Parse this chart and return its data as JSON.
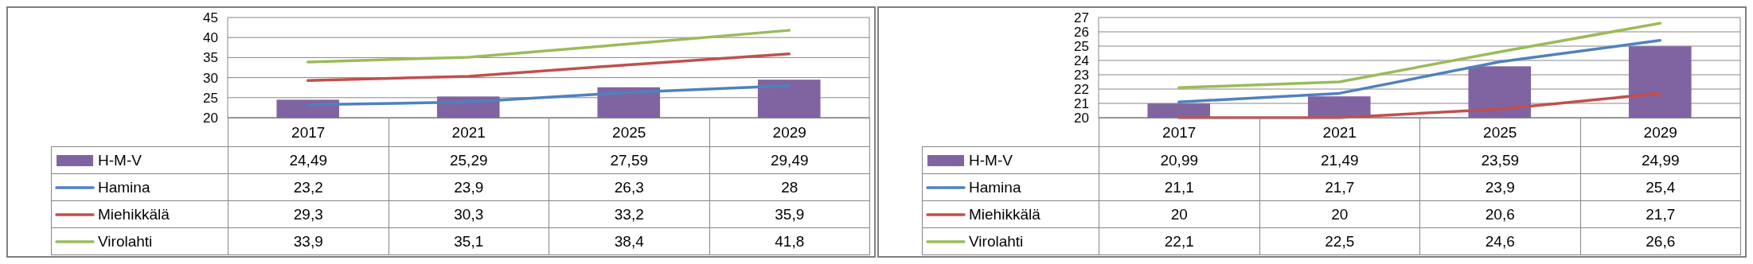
{
  "chart_data": [
    {
      "type": "bar",
      "categories": [
        "2017",
        "2021",
        "2025",
        "2029"
      ],
      "ylim": [
        20,
        45
      ],
      "yticks": [
        20,
        25,
        30,
        35,
        40,
        45
      ],
      "grid": "y",
      "legend": "bottom",
      "series": [
        {
          "name": "H-M-V",
          "type": "bar",
          "color": "#8064a2",
          "values": [
            24.49,
            25.29,
            27.59,
            29.49
          ],
          "value_labels": [
            "24,49",
            "25,29",
            "27,59",
            "29,49"
          ]
        },
        {
          "name": "Hamina",
          "type": "line",
          "color": "#4f81bd",
          "values": [
            23.2,
            23.9,
            26.3,
            28
          ],
          "value_labels": [
            "23,2",
            "23,9",
            "26,3",
            "28"
          ]
        },
        {
          "name": "Miehikkälä",
          "type": "line",
          "color": "#c0504d",
          "values": [
            29.3,
            30.3,
            33.2,
            35.9
          ],
          "value_labels": [
            "29,3",
            "30,3",
            "33,2",
            "35,9"
          ]
        },
        {
          "name": "Virolahti",
          "type": "line",
          "color": "#9bbb59",
          "values": [
            33.9,
            35.1,
            38.4,
            41.8
          ],
          "value_labels": [
            "33,9",
            "35,1",
            "38,4",
            "41,8"
          ]
        }
      ]
    },
    {
      "type": "bar",
      "categories": [
        "2017",
        "2021",
        "2025",
        "2029"
      ],
      "ylim": [
        20,
        27
      ],
      "yticks": [
        20,
        21,
        22,
        23,
        24,
        25,
        26,
        27
      ],
      "grid": "y",
      "legend": "bottom",
      "series": [
        {
          "name": "H-M-V",
          "type": "bar",
          "color": "#8064a2",
          "values": [
            20.99,
            21.49,
            23.59,
            24.99
          ],
          "value_labels": [
            "20,99",
            "21,49",
            "23,59",
            "24,99"
          ]
        },
        {
          "name": "Hamina",
          "type": "line",
          "color": "#4f81bd",
          "values": [
            21.1,
            21.7,
            23.9,
            25.4
          ],
          "value_labels": [
            "21,1",
            "21,7",
            "23,9",
            "25,4"
          ]
        },
        {
          "name": "Miehikkälä",
          "type": "line",
          "color": "#c0504d",
          "values": [
            20,
            20,
            20.6,
            21.7
          ],
          "value_labels": [
            "20",
            "20",
            "20,6",
            "21,7"
          ]
        },
        {
          "name": "Virolahti",
          "type": "line",
          "color": "#9bbb59",
          "values": [
            22.1,
            22.5,
            24.6,
            26.6
          ],
          "value_labels": [
            "22,1",
            "22,5",
            "24,6",
            "26,6"
          ]
        }
      ]
    }
  ]
}
